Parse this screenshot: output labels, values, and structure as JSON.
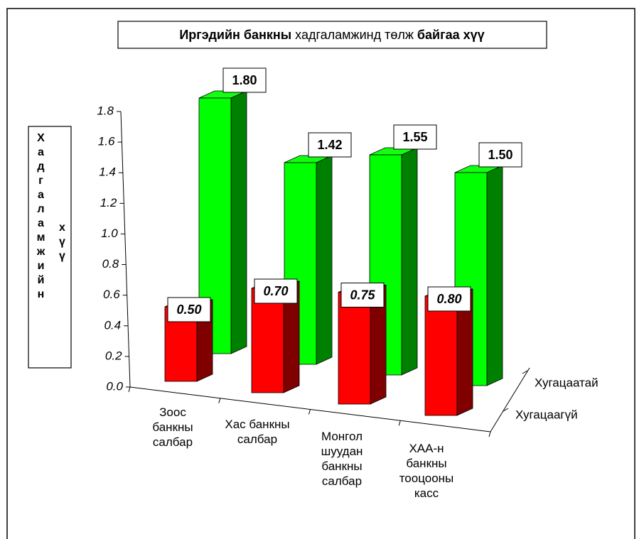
{
  "chart_data": {
    "type": "bar3d",
    "title": [
      "Иргэдийн банкны",
      "хадгаламжинд төлж",
      "байгаа хүү"
    ],
    "ylabel": [
      "Хадгаламжийн",
      "хүү"
    ],
    "categories": [
      "Зоос банкны салбар",
      "Хас банкны салбар",
      "Монгол шуудан банкны салбар",
      "ХАА-н банкны тооцооны касс"
    ],
    "series": [
      {
        "name": "Хугацаатай",
        "color": "#00ff00",
        "values": [
          1.8,
          1.42,
          1.55,
          1.5
        ],
        "value_labels": [
          "1.80",
          "1.42",
          "1.55",
          "1.50"
        ]
      },
      {
        "name": "Хугацаагүй",
        "color": "#ff0000",
        "values": [
          0.5,
          0.7,
          0.75,
          0.8
        ],
        "value_labels": [
          "0.50",
          "0.70",
          "0.75",
          "0.80"
        ]
      }
    ],
    "ylim": [
      0,
      1.8
    ],
    "yticks": [
      {
        "value": 0,
        "label": "0.0"
      },
      0.2,
      0.4,
      0.6,
      0.8,
      {
        "value": 1,
        "label": "1.0"
      },
      1.2,
      1.4,
      1.6,
      1.8
    ],
    "grid": false
  }
}
